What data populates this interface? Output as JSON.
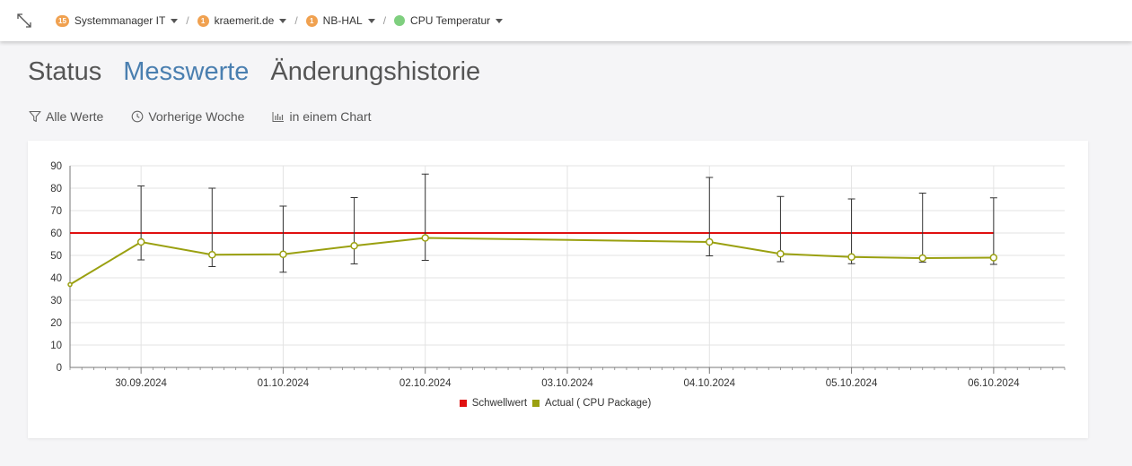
{
  "breadcrumb": {
    "items": [
      {
        "label": "Systemmanager IT",
        "badge": "15",
        "kind": "badge"
      },
      {
        "label": "kraemerit.de",
        "badge": "1",
        "kind": "badge"
      },
      {
        "label": "NB-HAL",
        "badge": "1",
        "kind": "badge"
      },
      {
        "label": "CPU Temperatur",
        "kind": "status-dot",
        "status_color": "#7fcf7f"
      }
    ],
    "separator": "/"
  },
  "tabs": [
    {
      "label": "Status",
      "active": false
    },
    {
      "label": "Messwerte",
      "active": true
    },
    {
      "label": "Änderungshistorie",
      "active": false
    }
  ],
  "toolbar": {
    "filter_label": "Alle Werte",
    "history_label": "Vorherige Woche",
    "chart_label": "in einem Chart"
  },
  "chart_data": {
    "type": "line",
    "ylim": [
      0,
      90
    ],
    "yticks": [
      0,
      10,
      20,
      30,
      40,
      50,
      60,
      70,
      80,
      90
    ],
    "xlim": [
      "2024-09-29T12:00",
      "2024-10-06T12:00"
    ],
    "xticks": [
      "30.09.2024",
      "01.10.2024",
      "02.10.2024",
      "03.10.2024",
      "04.10.2024",
      "05.10.2024",
      "06.10.2024"
    ],
    "grid": true,
    "legend_position": "bottom-center",
    "series": [
      {
        "name": "Schwellwert",
        "color": "#e01010",
        "points": [
          {
            "x": "2024-09-29T12:00",
            "y": 60
          },
          {
            "x": "2024-10-06T00:00",
            "y": 60
          }
        ]
      },
      {
        "name": "Actual ( CPU Package)",
        "color": "#9aa010",
        "points": [
          {
            "x": "2024-09-29T12:00",
            "y": 37,
            "min": 37,
            "max": 37
          },
          {
            "x": "2024-09-30T00:00",
            "y": 56,
            "min": 48,
            "max": 81
          },
          {
            "x": "2024-09-30T12:00",
            "y": 50.3,
            "min": 45,
            "max": 80
          },
          {
            "x": "2024-10-01T00:00",
            "y": 50.5,
            "min": 42.5,
            "max": 72
          },
          {
            "x": "2024-10-01T12:00",
            "y": 54.3,
            "min": 46.2,
            "max": 75.8
          },
          {
            "x": "2024-10-02T00:00",
            "y": 57.8,
            "min": 47.8,
            "max": 86.3
          },
          {
            "x": "2024-10-04T00:00",
            "y": 56,
            "min": 49.8,
            "max": 84.8
          },
          {
            "x": "2024-10-04T12:00",
            "y": 50.7,
            "min": 47.2,
            "max": 76.3
          },
          {
            "x": "2024-10-05T00:00",
            "y": 49.3,
            "min": 46.3,
            "max": 75.2
          },
          {
            "x": "2024-10-05T12:00",
            "y": 48.8,
            "min": 47,
            "max": 77.8
          },
          {
            "x": "2024-10-06T00:00",
            "y": 49,
            "min": 46,
            "max": 75.7
          }
        ]
      }
    ]
  }
}
